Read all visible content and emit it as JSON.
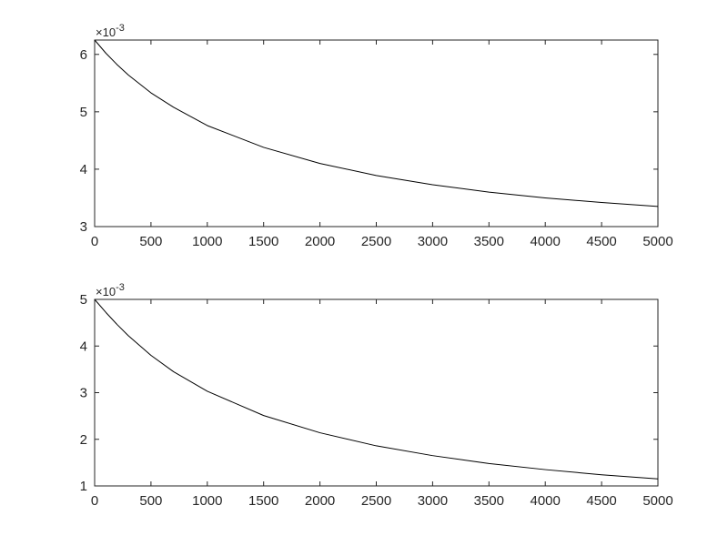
{
  "chart_data": [
    {
      "type": "line",
      "title": "",
      "xlabel": "",
      "ylabel": "",
      "xlim": [
        0,
        5000
      ],
      "ylim": [
        3,
        6.25
      ],
      "y_multiplier_label": "×10",
      "y_multiplier_exponent": "-3",
      "xticks": [
        0,
        500,
        1000,
        1500,
        2000,
        2500,
        3000,
        3500,
        4000,
        4500,
        5000
      ],
      "yticks": [
        3,
        4,
        5,
        6
      ],
      "grid": false,
      "line_color": "#000000",
      "series": [
        {
          "x": [
            0,
            100,
            200,
            300,
            500,
            700,
            1000,
            1500,
            2000,
            2500,
            3000,
            3500,
            4000,
            4500,
            5000
          ],
          "values": [
            6.25,
            6.02,
            5.82,
            5.64,
            5.33,
            5.08,
            4.76,
            4.38,
            4.1,
            3.89,
            3.73,
            3.6,
            3.5,
            3.42,
            3.35
          ]
        }
      ]
    },
    {
      "type": "line",
      "title": "",
      "xlabel": "",
      "ylabel": "",
      "xlim": [
        0,
        5000
      ],
      "ylim": [
        1,
        5
      ],
      "y_multiplier_label": "×10",
      "y_multiplier_exponent": "-3",
      "xticks": [
        0,
        500,
        1000,
        1500,
        2000,
        2500,
        3000,
        3500,
        4000,
        4500,
        5000
      ],
      "yticks": [
        1,
        2,
        3,
        4,
        5
      ],
      "grid": false,
      "line_color": "#000000",
      "series": [
        {
          "x": [
            0,
            100,
            200,
            300,
            500,
            700,
            1000,
            1500,
            2000,
            2500,
            3000,
            3500,
            4000,
            4500,
            5000
          ],
          "values": [
            5.0,
            4.72,
            4.46,
            4.22,
            3.8,
            3.45,
            3.03,
            2.51,
            2.14,
            1.86,
            1.65,
            1.48,
            1.35,
            1.24,
            1.15
          ]
        }
      ]
    }
  ]
}
